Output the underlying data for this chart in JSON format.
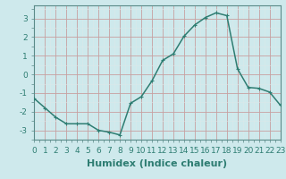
{
  "x": [
    0,
    1,
    2,
    3,
    4,
    5,
    6,
    7,
    8,
    9,
    10,
    11,
    12,
    13,
    14,
    15,
    16,
    17,
    18,
    19,
    20,
    21,
    22,
    23
  ],
  "y": [
    -1.3,
    -1.8,
    -2.3,
    -2.65,
    -2.65,
    -2.65,
    -3.0,
    -3.1,
    -3.25,
    -1.55,
    -1.2,
    -0.35,
    0.75,
    1.1,
    2.05,
    2.65,
    3.05,
    3.3,
    3.15,
    0.3,
    -0.7,
    -0.75,
    -0.95,
    -1.65
  ],
  "line_color": "#2e7d72",
  "marker": "+",
  "marker_size": 3.5,
  "bg_color": "#cee9ec",
  "grid_major_color": "#c8a0a0",
  "grid_minor_color": "#dce8ea",
  "xlabel": "Humidex (Indice chaleur)",
  "xlim": [
    0,
    23
  ],
  "ylim": [
    -3.5,
    3.7
  ],
  "yticks": [
    -3,
    -2,
    -1,
    0,
    1,
    2,
    3
  ],
  "xticks": [
    0,
    1,
    2,
    3,
    4,
    5,
    6,
    7,
    8,
    9,
    10,
    11,
    12,
    13,
    14,
    15,
    16,
    17,
    18,
    19,
    20,
    21,
    22,
    23
  ],
  "xtick_labels": [
    "0",
    "1",
    "2",
    "3",
    "4",
    "5",
    "6",
    "7",
    "8",
    "9",
    "10",
    "11",
    "12",
    "13",
    "14",
    "15",
    "16",
    "17",
    "18",
    "19",
    "20",
    "21",
    "22",
    "23"
  ],
  "tick_fontsize": 6.5,
  "xlabel_fontsize": 8,
  "line_width": 1.1,
  "spine_color": "#5a8a88"
}
